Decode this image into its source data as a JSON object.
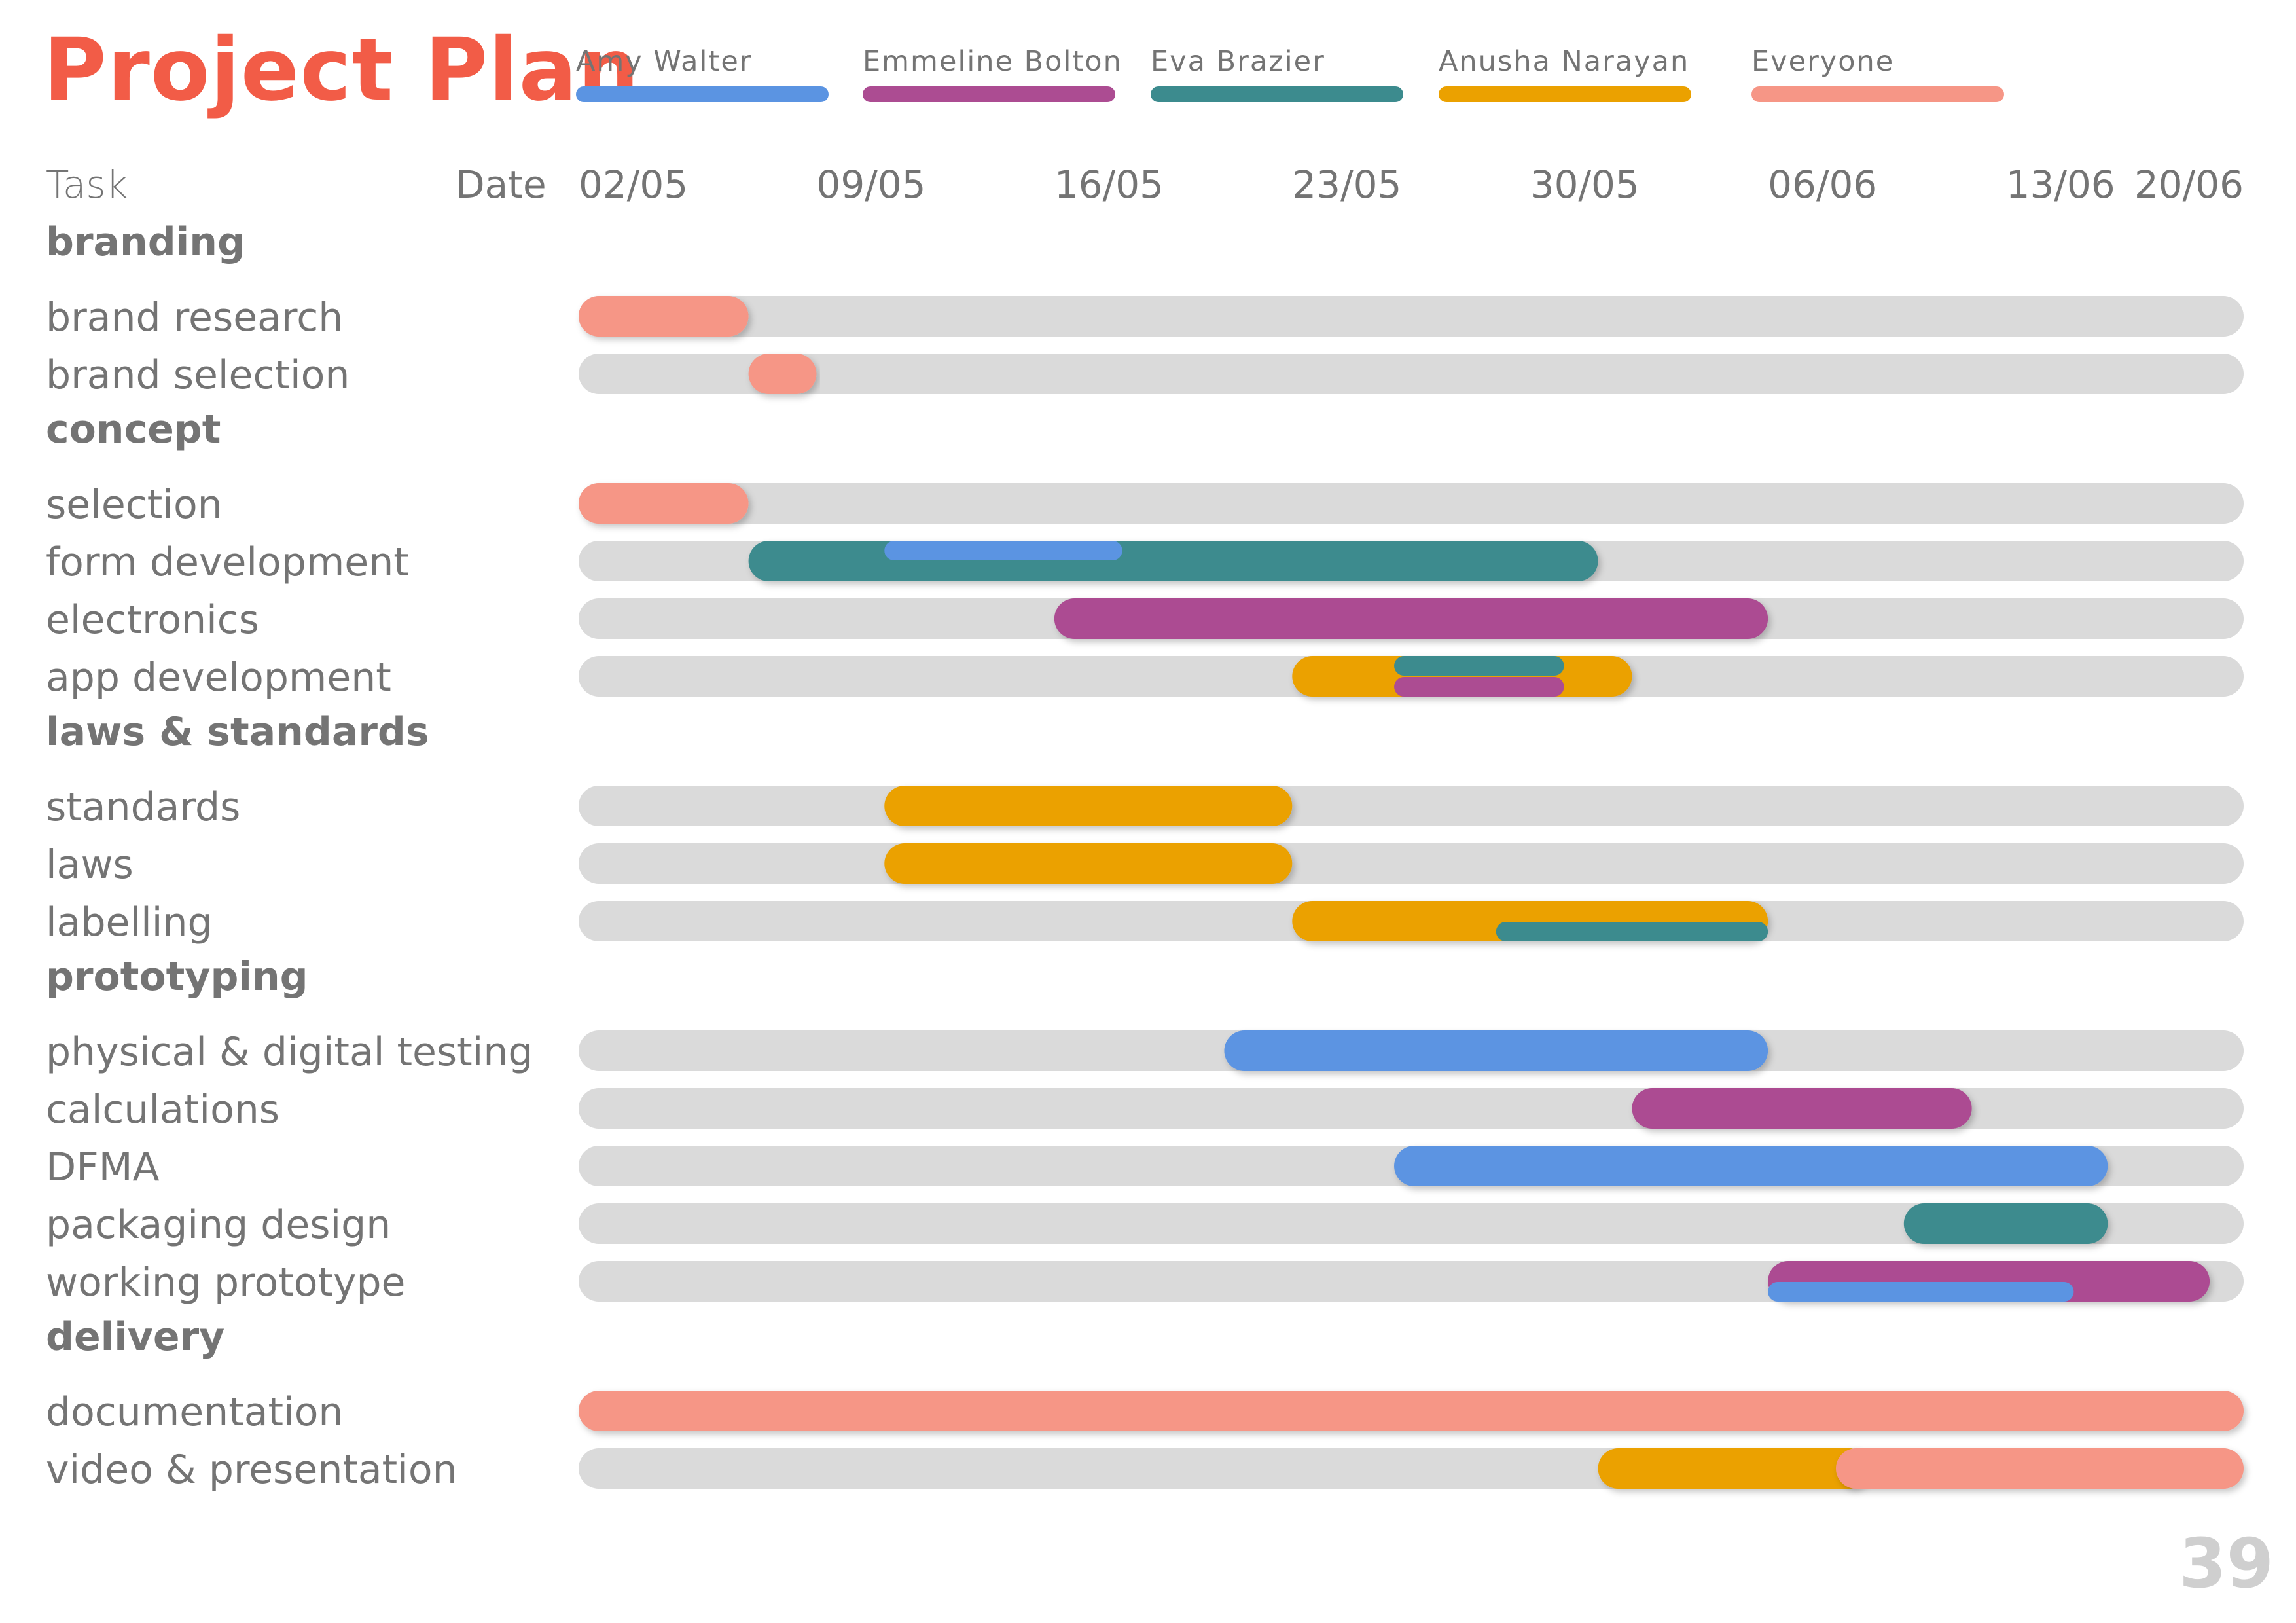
{
  "title": "Project Plan",
  "page_number": "39",
  "colors": {
    "title": "#F25C47",
    "track": "#DADADA",
    "text": "#747474"
  },
  "chart_data": {
    "type": "gantt",
    "x_axis_type": "date",
    "x_range": [
      "2025-05-02",
      "2025-06-20"
    ],
    "column_headers": {
      "task": "Task",
      "date": "Date"
    },
    "date_ticks": [
      {
        "label": "02/05",
        "date": "2025-05-02"
      },
      {
        "label": "09/05",
        "date": "2025-05-09"
      },
      {
        "label": "16/05",
        "date": "2025-05-16"
      },
      {
        "label": "23/05",
        "date": "2025-05-23"
      },
      {
        "label": "30/05",
        "date": "2025-05-30"
      },
      {
        "label": "06/06",
        "date": "2025-06-06"
      },
      {
        "label": "13/06",
        "date": "2025-06-13"
      },
      {
        "label": "20/06",
        "date": "2025-06-20"
      }
    ],
    "people": [
      {
        "id": "amy",
        "name": "Amy Walter",
        "color": "#5B94E2"
      },
      {
        "id": "emmeline",
        "name": "Emmeline Bolton",
        "color": "#AC4C92"
      },
      {
        "id": "eva",
        "name": "Eva Brazier",
        "color": "#3C8B8E"
      },
      {
        "id": "anusha",
        "name": "Anusha Narayan",
        "color": "#EBA100"
      },
      {
        "id": "everyone",
        "name": "Everyone",
        "color": "#F69686"
      }
    ],
    "groups": [
      {
        "name": "branding",
        "tasks": [
          {
            "name": "brand research",
            "bars": [
              {
                "person": "everyone",
                "start": "2025-05-02",
                "end": "2025-05-07",
                "weight": "full"
              }
            ]
          },
          {
            "name": "brand selection",
            "bars": [
              {
                "person": "everyone",
                "start": "2025-05-07",
                "end": "2025-05-09",
                "weight": "full"
              }
            ]
          }
        ]
      },
      {
        "name": "concept",
        "tasks": [
          {
            "name": "selection",
            "bars": [
              {
                "person": "everyone",
                "start": "2025-05-02",
                "end": "2025-05-07",
                "weight": "full"
              }
            ]
          },
          {
            "name": "form development",
            "bars": [
              {
                "person": "eva",
                "start": "2025-05-07",
                "end": "2025-06-01",
                "weight": "full"
              },
              {
                "person": "amy",
                "start": "2025-05-11",
                "end": "2025-05-18",
                "weight": "thin-top"
              }
            ]
          },
          {
            "name": "electronics",
            "bars": [
              {
                "person": "emmeline",
                "start": "2025-05-16",
                "end": "2025-06-06",
                "weight": "full"
              }
            ]
          },
          {
            "name": "app development",
            "bars": [
              {
                "person": "anusha",
                "start": "2025-05-23",
                "end": "2025-06-02",
                "weight": "full"
              },
              {
                "person": "eva",
                "start": "2025-05-26",
                "end": "2025-05-31",
                "weight": "thin-top"
              },
              {
                "person": "emmeline",
                "start": "2025-05-26",
                "end": "2025-05-31",
                "weight": "thin-bottom"
              }
            ]
          }
        ]
      },
      {
        "name": "laws & standards",
        "tasks": [
          {
            "name": "standards",
            "bars": [
              {
                "person": "anusha",
                "start": "2025-05-11",
                "end": "2025-05-23",
                "weight": "full"
              }
            ]
          },
          {
            "name": "laws",
            "bars": [
              {
                "person": "anusha",
                "start": "2025-05-11",
                "end": "2025-05-23",
                "weight": "full"
              }
            ]
          },
          {
            "name": "labelling",
            "bars": [
              {
                "person": "anusha",
                "start": "2025-05-23",
                "end": "2025-06-06",
                "weight": "full"
              },
              {
                "person": "eva",
                "start": "2025-05-29",
                "end": "2025-06-06",
                "weight": "thin-bottom"
              }
            ]
          }
        ]
      },
      {
        "name": "prototyping",
        "tasks": [
          {
            "name": "physical & digital testing",
            "bars": [
              {
                "person": "amy",
                "start": "2025-05-21",
                "end": "2025-06-06",
                "weight": "full"
              }
            ]
          },
          {
            "name": "calculations",
            "bars": [
              {
                "person": "emmeline",
                "start": "2025-06-02",
                "end": "2025-06-12",
                "weight": "full"
              }
            ]
          },
          {
            "name": "DFMA",
            "bars": [
              {
                "person": "amy",
                "start": "2025-05-26",
                "end": "2025-06-16",
                "weight": "full"
              }
            ]
          },
          {
            "name": "packaging design",
            "bars": [
              {
                "person": "eva",
                "start": "2025-06-10",
                "end": "2025-06-16",
                "weight": "full"
              }
            ]
          },
          {
            "name": "working prototype",
            "bars": [
              {
                "person": "emmeline",
                "start": "2025-06-06",
                "end": "2025-06-19",
                "weight": "full"
              },
              {
                "person": "amy",
                "start": "2025-06-06",
                "end": "2025-06-15",
                "weight": "thin-bottom"
              }
            ]
          }
        ]
      },
      {
        "name": "delivery",
        "tasks": [
          {
            "name": "documentation",
            "bars": [
              {
                "person": "everyone",
                "start": "2025-05-02",
                "end": "2025-06-20",
                "weight": "full"
              }
            ]
          },
          {
            "name": "video & presentation",
            "bars": [
              {
                "person": "anusha",
                "start": "2025-06-01",
                "end": "2025-06-09",
                "weight": "full"
              },
              {
                "person": "everyone",
                "start": "2025-06-08",
                "end": "2025-06-20",
                "weight": "full"
              }
            ]
          }
        ]
      }
    ]
  }
}
